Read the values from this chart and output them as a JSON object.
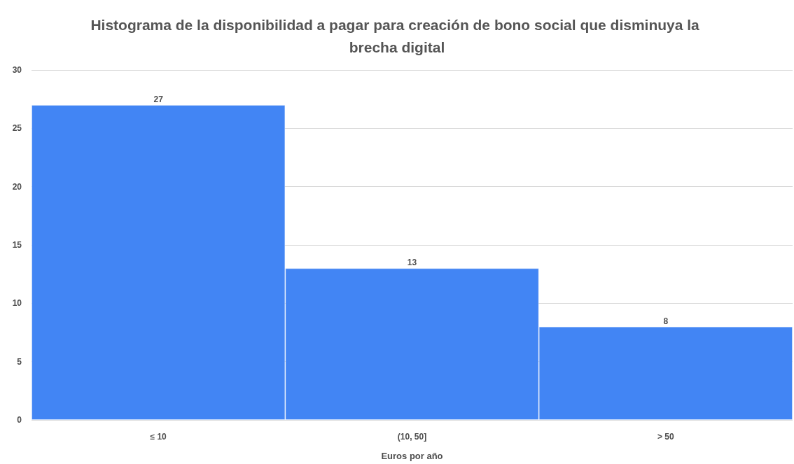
{
  "chart_data": {
    "type": "bar",
    "title": "Histograma de la disponibilidad a pagar para creación de bono social que disminuya la brecha digital",
    "xlabel": "Euros por año",
    "categories": [
      "≤ 10",
      "(10, 50]",
      "> 50"
    ],
    "values": [
      27,
      13,
      8
    ],
    "color": "#4285f4",
    "ylim": [
      0,
      30
    ],
    "yticks": [
      0,
      5,
      10,
      15,
      20,
      25,
      30
    ],
    "grid": "y",
    "data_labels": true
  }
}
